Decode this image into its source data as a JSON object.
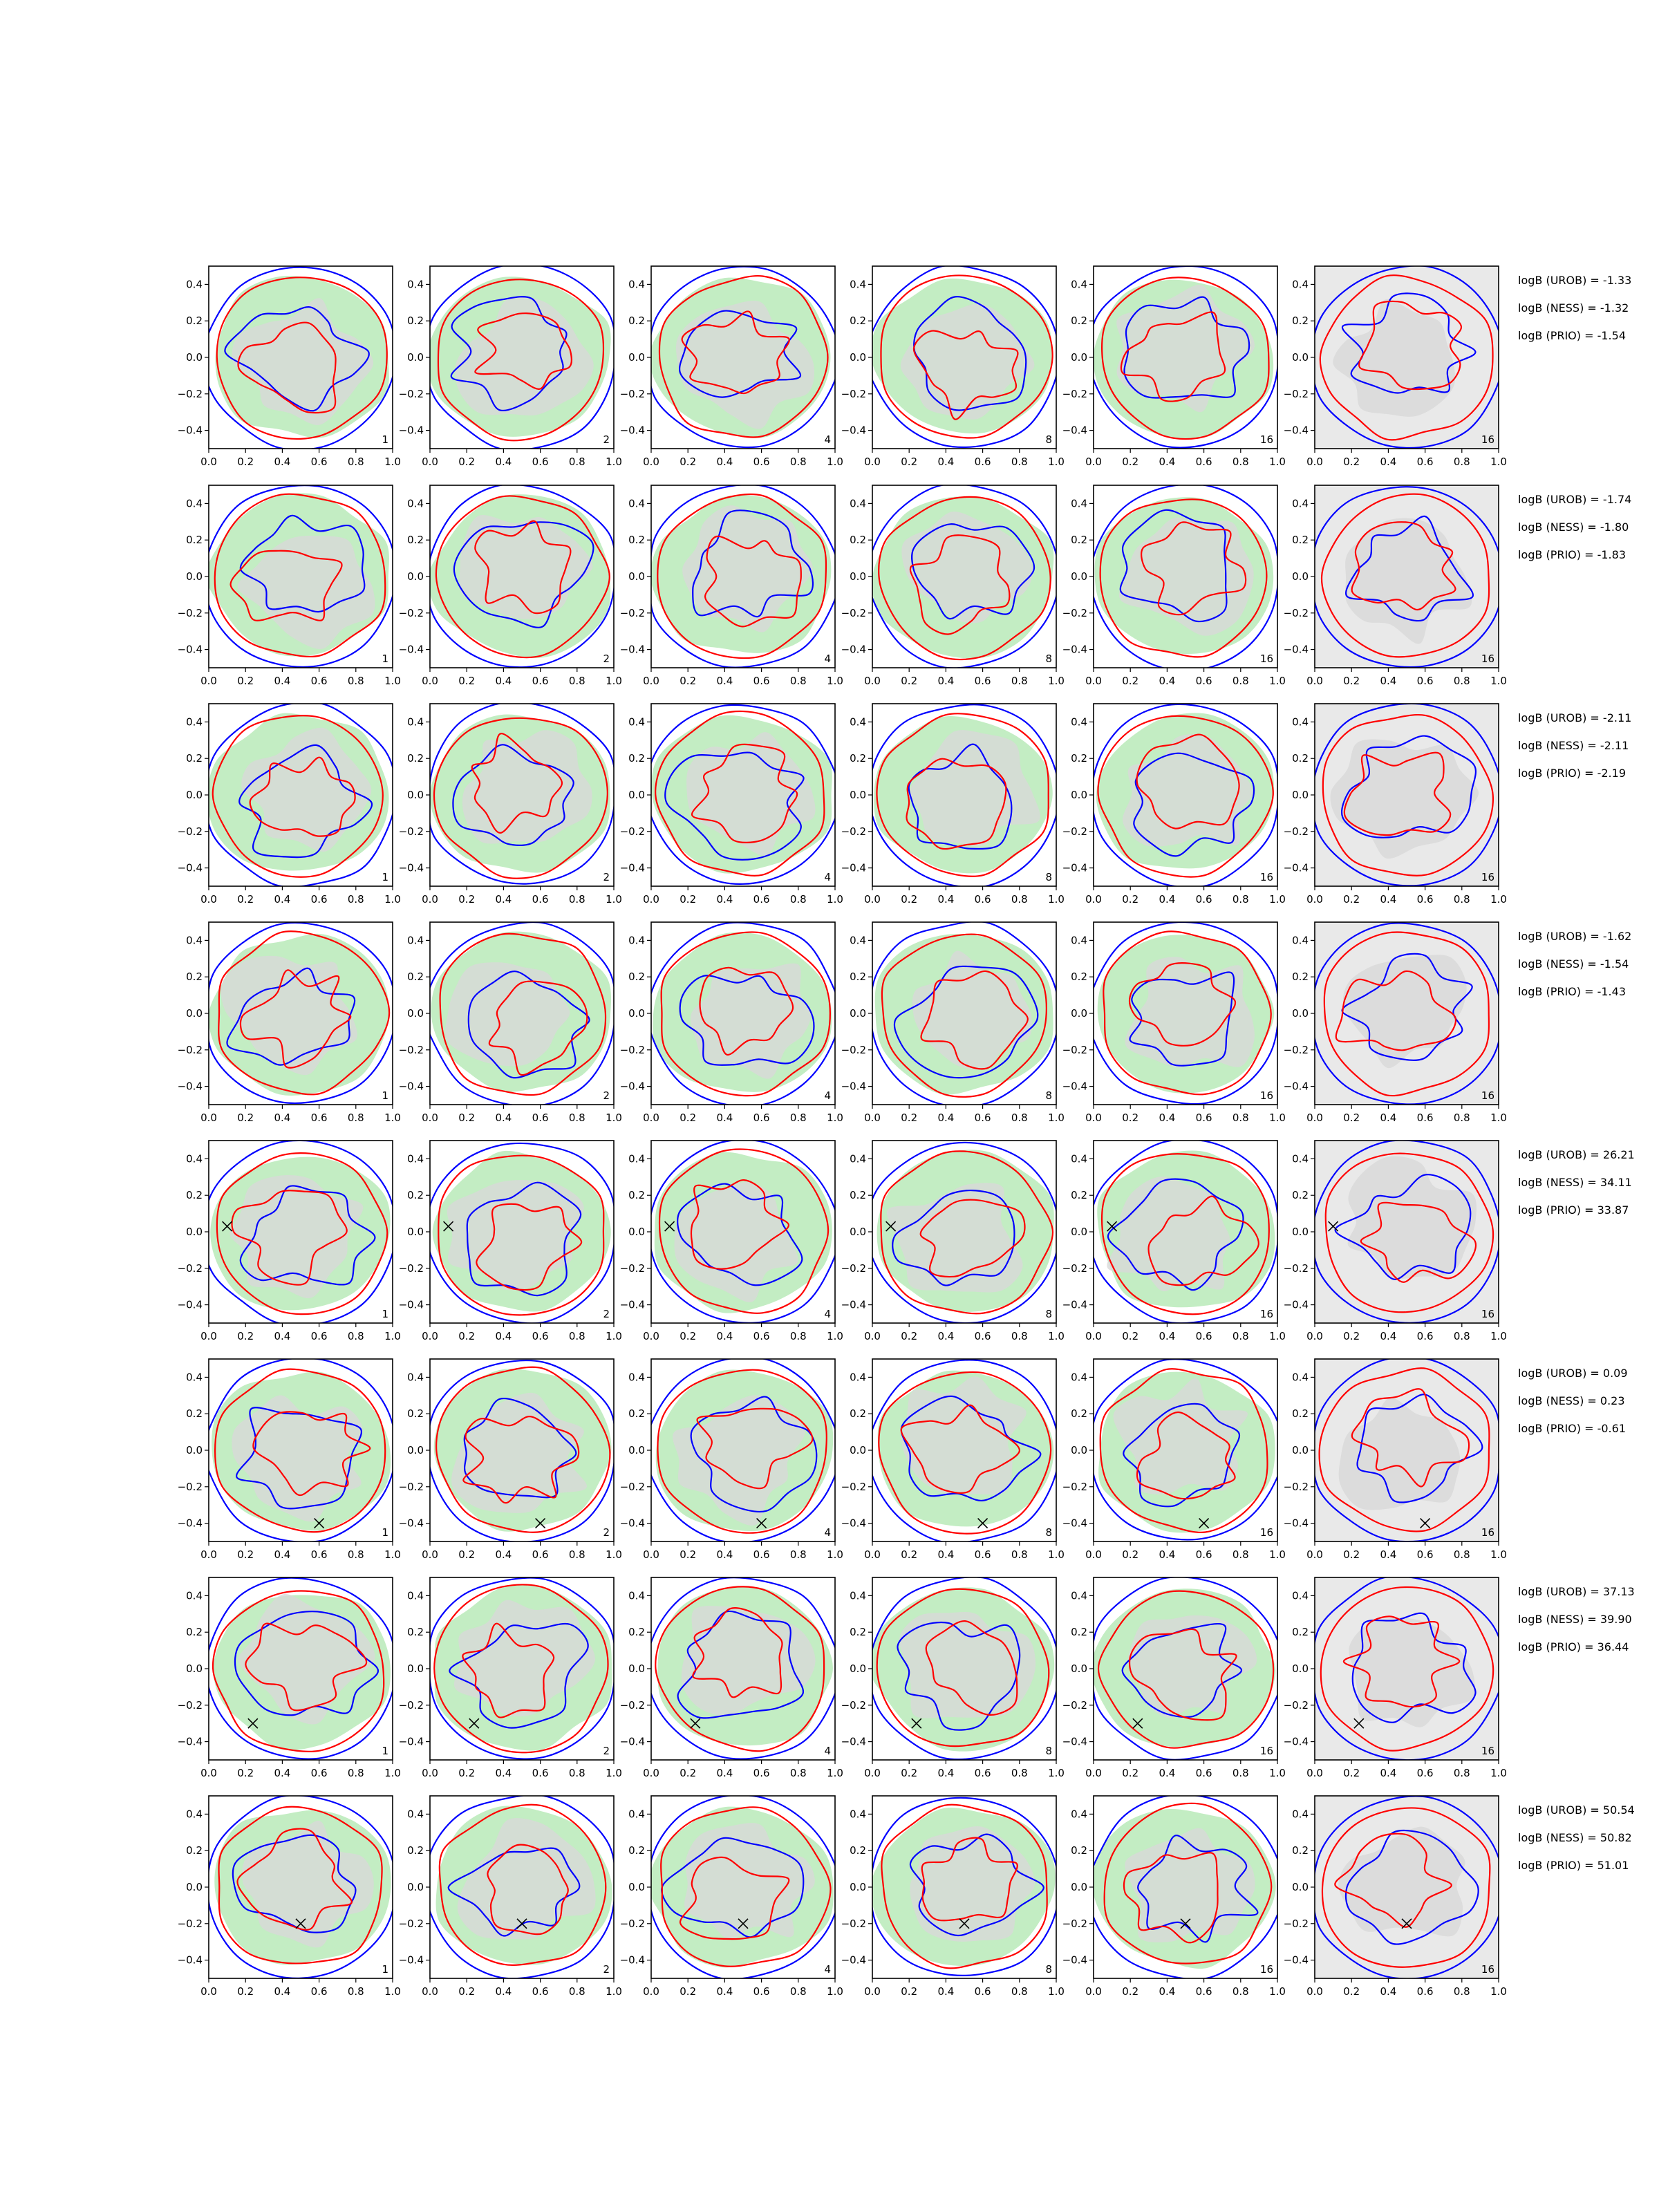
{
  "figure": {
    "row_count": 8,
    "column_tags": [
      "1",
      "2",
      "4",
      "8",
      "16",
      "16"
    ]
  },
  "colors": {
    "blue": "#0000ff",
    "red": "#ff0000",
    "green_fill": "#c3edc3",
    "gray_fill": "#d8d8d8",
    "light_gray_fill": "#e9e9e9"
  },
  "chart_data": {
    "type": "contour",
    "xlim": [
      0.0,
      1.0
    ],
    "ylim": [
      -0.5,
      0.5
    ],
    "xticks": [
      "0.0",
      "0.2",
      "0.4",
      "0.6",
      "0.8",
      "1.0"
    ],
    "yticks": [
      "0.4",
      "0.2",
      "0.0",
      "−0.2",
      "−0.4"
    ],
    "panels_per_row": 6,
    "rows": [
      {
        "logB": [
          "logB (UROB) = -1.33",
          "logB (NESS) = -1.32",
          "logB (PRIO) = -1.54"
        ],
        "marker": null
      },
      {
        "logB": [
          "logB (UROB) = -1.74",
          "logB (NESS) = -1.80",
          "logB (PRIO) = -1.83"
        ],
        "marker": null
      },
      {
        "logB": [
          "logB (UROB) = -2.11",
          "logB (NESS) = -2.11",
          "logB (PRIO) = -2.19"
        ],
        "marker": null
      },
      {
        "logB": [
          "logB (UROB) = -1.62",
          "logB (NESS) = -1.54",
          "logB (PRIO) = -1.43"
        ],
        "marker": null
      },
      {
        "logB": [
          "logB (UROB) = 26.21",
          "logB (NESS) = 34.11",
          "logB (PRIO) = 33.87"
        ],
        "marker": [
          0.1,
          0.03
        ]
      },
      {
        "logB": [
          "logB (UROB) = 0.09",
          "logB (NESS) = 0.23",
          "logB (PRIO) = -0.61"
        ],
        "marker": [
          0.6,
          -0.4
        ]
      },
      {
        "logB": [
          "logB (UROB) = 37.13",
          "logB (NESS) = 39.90",
          "logB (PRIO) = 36.44"
        ],
        "marker": [
          0.24,
          -0.3
        ]
      },
      {
        "logB": [
          "logB (UROB) = 50.54",
          "logB (NESS) = 50.82",
          "logB (PRIO) = 51.01"
        ],
        "marker": [
          0.5,
          -0.2
        ]
      }
    ]
  }
}
